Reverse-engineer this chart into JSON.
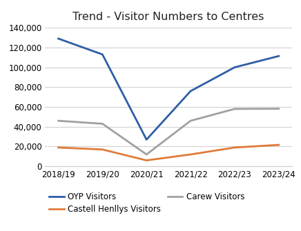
{
  "title": "Trend - Visitor Numbers to Centres",
  "categories": [
    "2018/19",
    "2019/20",
    "2020/21",
    "2021/22",
    "2022/23",
    "2023/24"
  ],
  "series": [
    {
      "label": "OYP Visitors",
      "color": "#2E5DA6",
      "values": [
        129000,
        113000,
        27000,
        76000,
        100000,
        111388
      ]
    },
    {
      "label": "Castell Henllys Visitors",
      "color": "#E07B39",
      "values": [
        19000,
        17000,
        6000,
        12000,
        19000,
        21651
      ]
    },
    {
      "label": "Carew Visitors",
      "color": "#A0A0A0",
      "values": [
        46000,
        43000,
        12000,
        46000,
        58000,
        58132
      ]
    }
  ],
  "ylim": [
    0,
    140000
  ],
  "yticks": [
    0,
    20000,
    40000,
    60000,
    80000,
    100000,
    120000,
    140000
  ],
  "background_color": "#ffffff",
  "grid_color": "#d0d0d0",
  "title_fontsize": 11.5,
  "tick_fontsize": 8.5,
  "legend_fontsize": 8.5,
  "line_width": 2.0
}
